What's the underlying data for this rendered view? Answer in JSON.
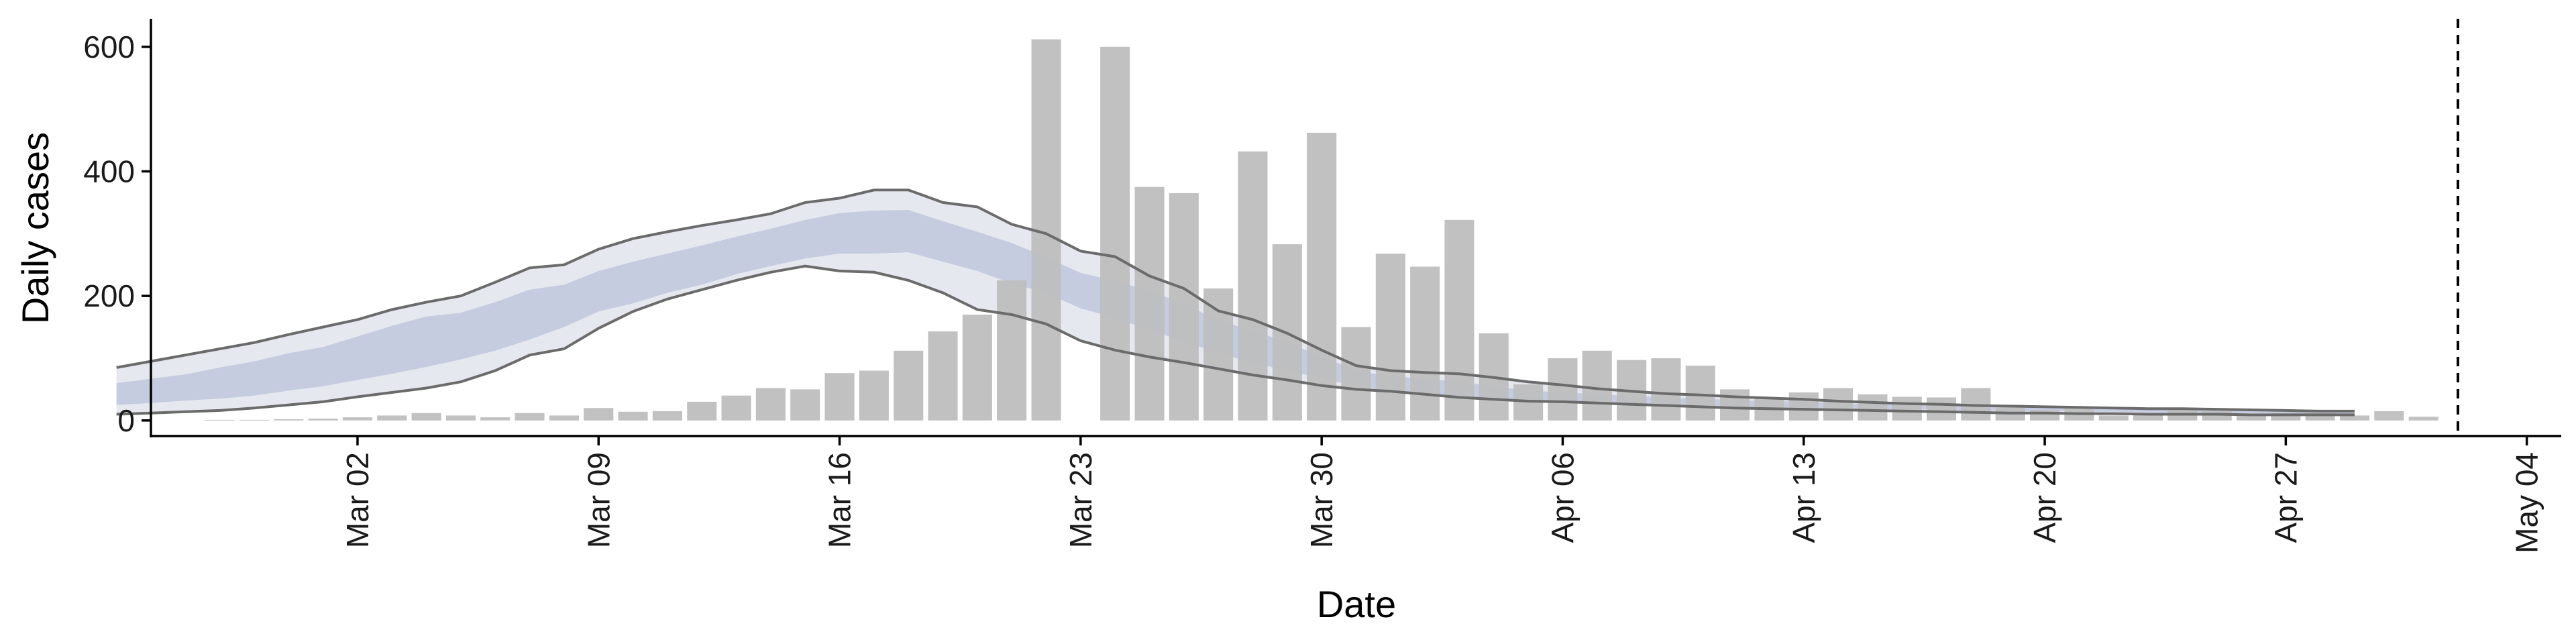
{
  "chart_data": {
    "type": "bar",
    "title": "",
    "xlabel": "Date",
    "ylabel": "Daily cases",
    "ylim": [
      -25,
      645
    ],
    "yticks": [
      0,
      200,
      400,
      600
    ],
    "x_start": "2020-02-25",
    "x_end": "2020-05-05",
    "xticks": [
      {
        "date": "2020-03-02",
        "label": "Mar 02"
      },
      {
        "date": "2020-03-09",
        "label": "Mar 09"
      },
      {
        "date": "2020-03-16",
        "label": "Mar 16"
      },
      {
        "date": "2020-03-23",
        "label": "Mar 23"
      },
      {
        "date": "2020-03-30",
        "label": "Mar 30"
      },
      {
        "date": "2020-04-06",
        "label": "Apr 06"
      },
      {
        "date": "2020-04-13",
        "label": "Apr 13"
      },
      {
        "date": "2020-04-20",
        "label": "Apr 20"
      },
      {
        "date": "2020-04-27",
        "label": "Apr 27"
      },
      {
        "date": "2020-05-04",
        "label": "May 04"
      }
    ],
    "vline_date": "2020-05-02",
    "bars": {
      "first_date": "2020-02-27",
      "values": [
        1,
        1,
        2,
        3,
        5,
        8,
        12,
        8,
        5,
        12,
        8,
        20,
        14,
        15,
        30,
        40,
        52,
        50,
        76,
        80,
        112,
        143,
        170,
        225,
        612,
        0,
        600,
        375,
        365,
        212,
        432,
        283,
        462,
        150,
        268,
        247,
        322,
        140,
        58,
        100,
        112,
        97,
        100,
        88,
        50,
        35,
        45,
        52,
        42,
        38,
        37,
        52,
        25,
        17,
        22,
        8,
        12,
        20,
        15,
        10,
        12,
        12,
        8,
        15,
        6
      ],
      "color": "#bebebe"
    },
    "model_band": {
      "first_date": "2020-02-24",
      "upper_90": [
        85,
        95,
        105,
        115,
        125,
        138,
        150,
        162,
        178,
        190,
        200,
        222,
        245,
        250,
        275,
        292,
        303,
        313,
        322,
        332,
        350,
        357,
        370,
        370,
        350,
        343,
        315,
        300,
        272,
        263,
        232,
        212,
        176,
        162,
        140,
        113,
        88,
        80,
        77,
        75,
        69,
        62,
        57,
        51,
        47,
        43,
        41,
        38,
        36,
        34,
        31,
        29,
        27,
        26,
        24,
        23,
        22,
        21,
        20,
        19,
        19,
        18,
        17,
        16,
        15,
        15
      ],
      "upper_50": [
        60,
        67,
        74,
        85,
        95,
        108,
        118,
        135,
        152,
        167,
        173,
        190,
        210,
        218,
        240,
        255,
        268,
        281,
        295,
        308,
        322,
        333,
        337,
        338,
        320,
        303,
        285,
        262,
        237,
        224,
        208,
        188,
        160,
        145,
        125,
        103,
        80,
        71,
        67,
        62,
        55,
        48,
        45,
        42,
        40,
        37,
        35,
        33,
        31,
        30,
        28,
        26,
        25,
        24,
        23,
        22,
        21,
        20,
        19,
        18,
        17,
        17,
        16,
        15,
        15,
        14
      ],
      "median": [
        40,
        45,
        50,
        56,
        65,
        75,
        85,
        95,
        110,
        123,
        135,
        150,
        170,
        185,
        205,
        220,
        238,
        250,
        265,
        278,
        293,
        300,
        302,
        302,
        290,
        277,
        260,
        245,
        215,
        200,
        183,
        165,
        145,
        125,
        108,
        90,
        70,
        60,
        55,
        50,
        45,
        40,
        37,
        35,
        33,
        31,
        29,
        28,
        27,
        26,
        25,
        24,
        23,
        22,
        21,
        20,
        19,
        18,
        18,
        17,
        16,
        15,
        15,
        14,
        13,
        13
      ],
      "lower_50": [
        25,
        28,
        32,
        35,
        40,
        48,
        55,
        65,
        75,
        86,
        98,
        112,
        130,
        150,
        175,
        188,
        205,
        218,
        235,
        248,
        260,
        268,
        268,
        270,
        255,
        240,
        220,
        205,
        180,
        165,
        145,
        127,
        108,
        93,
        80,
        68,
        55,
        47,
        43,
        39,
        35,
        31,
        28,
        27,
        25,
        24,
        23,
        22,
        21,
        20,
        19,
        18,
        18,
        17,
        16,
        15,
        15,
        14,
        14,
        13,
        13,
        12,
        12,
        11,
        11,
        11
      ],
      "lower_90": [
        10,
        12,
        14,
        16,
        20,
        25,
        30,
        38,
        45,
        52,
        62,
        80,
        105,
        115,
        148,
        175,
        195,
        210,
        225,
        238,
        248,
        240,
        238,
        225,
        205,
        178,
        170,
        155,
        128,
        113,
        102,
        93,
        83,
        73,
        65,
        56,
        50,
        47,
        42,
        37,
        34,
        31,
        30,
        28,
        26,
        24,
        22,
        20,
        19,
        18,
        17,
        16,
        15,
        14,
        13,
        12,
        12,
        11,
        11,
        10,
        10,
        10,
        9,
        9,
        9,
        9
      ],
      "outer_fill": "#e6e8f0",
      "inner_fill": "#c5cce0",
      "line_color": "#6b6b6b"
    }
  }
}
